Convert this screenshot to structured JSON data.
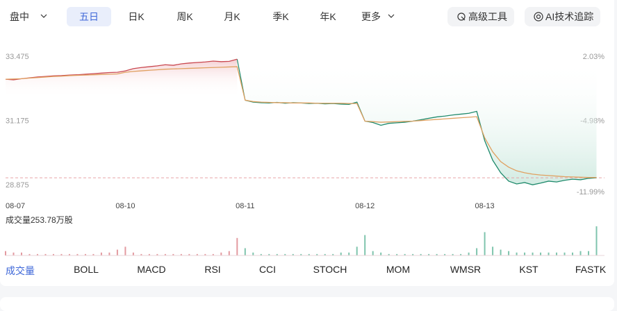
{
  "toolbar": {
    "tabs": [
      "盘中",
      "五日",
      "日K",
      "周K",
      "月K",
      "季K",
      "年K",
      "更多"
    ],
    "selected": 1,
    "tools": [
      "高级工具",
      "AI技术追踪"
    ]
  },
  "indicators": {
    "tabs": [
      "成交量",
      "BOLL",
      "MACD",
      "RSI",
      "CCI",
      "STOCH",
      "MOM",
      "WMSR",
      "KST",
      "FASTK"
    ],
    "selected": 0
  },
  "chart_data": {
    "type": "line",
    "categories": [
      "08-07",
      null,
      null,
      null,
      null,
      null,
      null,
      null,
      null,
      null,
      null,
      null,
      null,
      null,
      null,
      "08-10",
      null,
      null,
      null,
      null,
      null,
      null,
      null,
      null,
      null,
      null,
      null,
      null,
      null,
      null,
      "08-11",
      null,
      null,
      null,
      null,
      null,
      null,
      null,
      null,
      null,
      null,
      null,
      null,
      null,
      null,
      "08-12",
      null,
      null,
      null,
      null,
      null,
      null,
      null,
      null,
      null,
      null,
      null,
      null,
      null,
      null,
      "08-13",
      null,
      null,
      null,
      null,
      null,
      null,
      null,
      null,
      null,
      null,
      null,
      null,
      null,
      null
    ],
    "ylim": [
      28.875,
      33.475
    ],
    "yticks": [
      28.875,
      31.175,
      33.475
    ],
    "y2lim": [
      -11.99,
      2.03
    ],
    "y2ticks": [
      {
        "value": -11.99,
        "label": "-11.99%"
      },
      {
        "value": -4.98,
        "label": "-4.98%"
      },
      {
        "value": 2.03,
        "label": "2.03%"
      }
    ],
    "series": [
      {
        "color": "#c9474f",
        "values": [
          32.8,
          32.78,
          32.82,
          32.85,
          32.88,
          32.9,
          32.92,
          32.93,
          32.95,
          32.96,
          32.98,
          33.0,
          33.02,
          33.04,
          33.05,
          33.1,
          33.18,
          33.22,
          33.25,
          33.28,
          33.32,
          33.3,
          33.35,
          33.38,
          33.4,
          33.42,
          33.45,
          33.43,
          33.44,
          33.52,
          null,
          null,
          null,
          null,
          null,
          null,
          null,
          null,
          null,
          null,
          null,
          null,
          null,
          null,
          null,
          null,
          null,
          null,
          null,
          null,
          null,
          null,
          null,
          null,
          null,
          null,
          null,
          null,
          null,
          null,
          null,
          null,
          null,
          null,
          null,
          null,
          null,
          null,
          null,
          null,
          null,
          null,
          null,
          null,
          null
        ]
      },
      {
        "color": "#1f8a6c",
        "values": [
          null,
          null,
          null,
          null,
          null,
          null,
          null,
          null,
          null,
          null,
          null,
          null,
          null,
          null,
          null,
          null,
          null,
          null,
          null,
          null,
          null,
          null,
          null,
          null,
          null,
          null,
          null,
          null,
          null,
          null,
          32.05,
          31.98,
          31.96,
          31.95,
          31.97,
          31.94,
          31.96,
          31.95,
          31.93,
          31.94,
          31.92,
          31.93,
          31.91,
          31.9,
          31.98,
          31.3,
          31.25,
          31.15,
          31.22,
          31.24,
          31.26,
          31.3,
          31.35,
          31.4,
          31.45,
          31.48,
          31.52,
          31.55,
          31.58,
          31.65,
          30.6,
          29.9,
          29.45,
          29.15,
          29.05,
          29.1,
          29.02,
          29.08,
          29.15,
          29.12,
          29.18,
          29.22,
          29.2,
          29.25,
          29.27
        ]
      },
      {
        "color": "#e0a060",
        "values": [
          32.8,
          32.81,
          32.82,
          32.84,
          32.86,
          32.88,
          32.9,
          32.91,
          32.93,
          32.94,
          32.95,
          32.96,
          32.97,
          32.98,
          32.99,
          33.05,
          33.08,
          33.1,
          33.12,
          33.14,
          33.16,
          33.17,
          33.18,
          33.19,
          33.2,
          33.21,
          33.22,
          33.23,
          33.24,
          33.25,
          32.05,
          32.0,
          31.98,
          31.97,
          31.96,
          31.96,
          31.95,
          31.95,
          31.95,
          31.94,
          31.94,
          31.94,
          31.94,
          31.93,
          31.93,
          31.3,
          31.28,
          31.26,
          31.27,
          31.28,
          31.29,
          31.3,
          31.32,
          31.34,
          31.36,
          31.38,
          31.4,
          31.42,
          31.44,
          31.46,
          30.7,
          30.2,
          29.85,
          29.65,
          29.52,
          29.45,
          29.4,
          29.37,
          29.35,
          29.33,
          29.31,
          29.3,
          29.29,
          29.28,
          29.28
        ]
      }
    ],
    "volume_label": "成交量253.78万股",
    "volume": [
      {
        "color": "#e39aa0",
        "values": [
          3,
          2,
          2,
          1,
          1,
          1,
          1,
          1,
          1,
          1,
          1,
          1,
          2,
          2,
          4,
          6,
          2,
          1,
          1,
          1,
          1,
          1,
          1,
          1,
          1,
          1,
          1,
          2,
          3,
          12,
          null,
          null,
          null,
          null,
          null,
          null,
          null,
          null,
          null,
          null,
          null,
          null,
          null,
          null,
          null,
          null,
          null,
          null,
          null,
          null,
          null,
          null,
          null,
          null,
          null,
          null,
          null,
          null,
          null,
          null,
          null,
          null,
          null,
          null,
          null,
          null,
          null,
          null,
          null,
          null,
          null,
          null,
          null,
          null,
          null
        ]
      },
      {
        "color": "#7fc4ad",
        "values": [
          null,
          null,
          null,
          null,
          null,
          null,
          null,
          null,
          null,
          null,
          null,
          null,
          null,
          null,
          null,
          null,
          null,
          null,
          null,
          null,
          null,
          null,
          null,
          null,
          null,
          null,
          null,
          null,
          null,
          null,
          5,
          2,
          1,
          1,
          1,
          1,
          1,
          1,
          1,
          1,
          1,
          1,
          2,
          2,
          6,
          14,
          3,
          2,
          1,
          1,
          1,
          1,
          1,
          1,
          1,
          1,
          1,
          1,
          2,
          5,
          16,
          6,
          4,
          3,
          2,
          2,
          2,
          2,
          2,
          2,
          2,
          2,
          3,
          3,
          20
        ]
      }
    ]
  }
}
